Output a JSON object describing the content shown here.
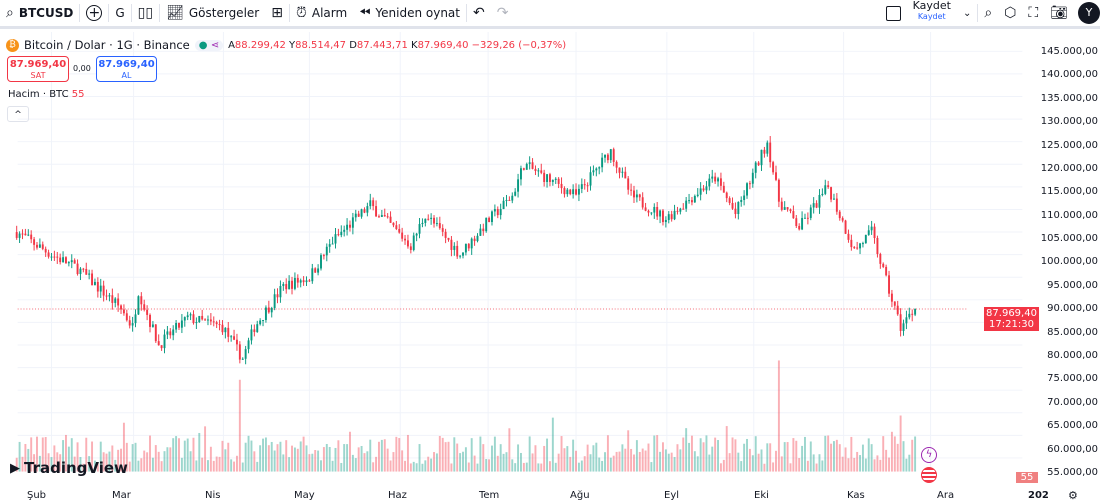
{
  "toolbar": {
    "symbol": "BTCUSD",
    "interval": "G",
    "indicators": "Göstergeler",
    "alarm": "Alarm",
    "replay": "Yeniden oynat",
    "save": "Kaydet",
    "save_sub": "Kaydet",
    "avatar": "Y"
  },
  "legend": {
    "title": "Bitcoin / Dolar · 1G · Binance",
    "open_label": "A",
    "open": "88.299,42",
    "high_label": "Y",
    "high": "88.514,47",
    "low_label": "D",
    "low": "87.443,71",
    "close_label": "K",
    "close": "87.969,40",
    "change": "−329,26 (−0,37%)"
  },
  "trade": {
    "sell_price": "87.969,40",
    "sell_label": "SAT",
    "spread": "0,00",
    "buy_price": "87.969,40",
    "buy_label": "AL"
  },
  "volume": {
    "label": "Hacim · BTC",
    "value": "55"
  },
  "price_axis": [
    "145.000,00",
    "140.000,00",
    "135.000,00",
    "130.000,00",
    "125.000,00",
    "120.000,00",
    "115.000,00",
    "110.000,00",
    "105.000,00",
    "100.000,00",
    "95.000,00",
    "90.000,00",
    "85.000,00",
    "80.000,00",
    "75.000,00",
    "70.000,00",
    "65.000,00",
    "60.000,00",
    "55.000,00"
  ],
  "current": {
    "price": "87.969,40",
    "countdown": "17:21:30",
    "volume_badge": "55"
  },
  "time_axis": [
    "Şub",
    "Mar",
    "Nis",
    "May",
    "Haz",
    "Tem",
    "Ağu",
    "Eyl",
    "Eki",
    "Kas",
    "Ara"
  ],
  "time_axis_year": "202",
  "logo": "TradingView",
  "colors": {
    "up": "#089981",
    "down": "#f23645",
    "accent": "#2962ff"
  },
  "chart_data": {
    "type": "candlestick",
    "approx_close_keypoints": [
      [
        "01-20",
        105000
      ],
      [
        "02-01",
        100000
      ],
      [
        "02-10",
        97000
      ],
      [
        "02-25",
        88000
      ],
      [
        "03-01",
        84000
      ],
      [
        "03-03",
        92000
      ],
      [
        "03-10",
        80000
      ],
      [
        "03-20",
        86000
      ],
      [
        "04-01",
        84000
      ],
      [
        "04-08",
        77000
      ],
      [
        "04-12",
        84000
      ],
      [
        "04-22",
        93000
      ],
      [
        "05-01",
        95000
      ],
      [
        "05-09",
        103000
      ],
      [
        "05-22",
        111000
      ],
      [
        "06-05",
        102000
      ],
      [
        "06-10",
        109000
      ],
      [
        "06-22",
        100000
      ],
      [
        "07-01",
        107000
      ],
      [
        "07-10",
        113000
      ],
      [
        "07-14",
        120000
      ],
      [
        "08-01",
        113000
      ],
      [
        "08-13",
        123000
      ],
      [
        "08-20",
        113000
      ],
      [
        "09-01",
        108000
      ],
      [
        "09-18",
        117000
      ],
      [
        "09-25",
        109000
      ],
      [
        "10-06",
        125000
      ],
      [
        "10-10",
        112000
      ],
      [
        "10-17",
        106000
      ],
      [
        "10-27",
        115000
      ],
      [
        "11-05",
        101000
      ],
      [
        "11-11",
        105000
      ],
      [
        "11-17",
        92000
      ],
      [
        "11-21",
        84000
      ],
      [
        "11-26",
        88000
      ]
    ]
  }
}
